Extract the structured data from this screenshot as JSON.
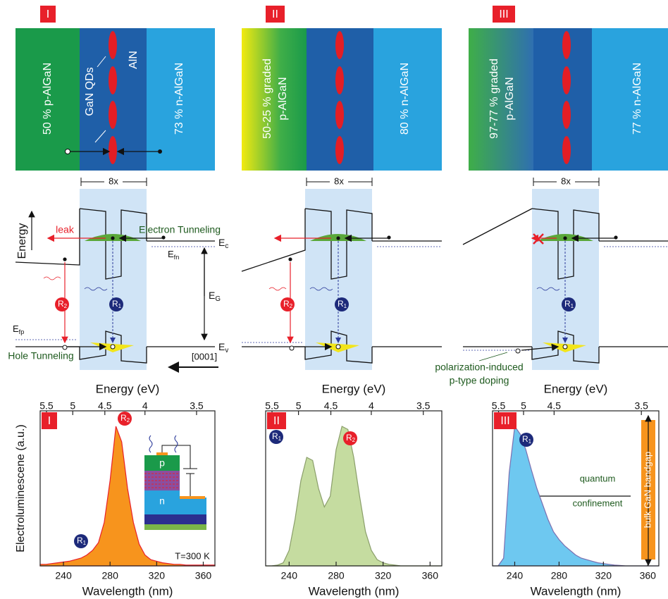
{
  "structures": [
    {
      "label": "I",
      "left": [
        "50 % p-AlGaN"
      ],
      "qd": "GaN QDs",
      "barrier": "AlN",
      "right": "73 % n-AlGaN",
      "period": "8x"
    },
    {
      "label": "II",
      "left": [
        "50-25 % graded",
        "p-AlGaN"
      ],
      "right": "80 % n-AlGaN",
      "period": "8x"
    },
    {
      "label": "III",
      "left": [
        "97-77 % graded",
        "p-AlGaN"
      ],
      "right": "77 % n-AlGaN",
      "period": "8x"
    }
  ],
  "band_diagram": {
    "energy": "Energy",
    "leak": "leak",
    "electron_tunneling": "Electron Tunneling",
    "hole_tunneling": "Hole Tunneling",
    "Ec": [
      "E",
      "c"
    ],
    "Efn": [
      "E",
      "fn"
    ],
    "EG": [
      "E",
      "G"
    ],
    "Efp": [
      "E",
      "fp"
    ],
    "Ev": [
      "E",
      "v"
    ],
    "direction": "[0001]",
    "R1": [
      "R",
      "1"
    ],
    "R2": [
      "R",
      "2"
    ],
    "polarization": [
      "polarization-induced",
      "p-type doping"
    ]
  },
  "chart_data": [
    {
      "type": "area",
      "label": "I",
      "color": "#f7941d",
      "stroke": "#e8202a",
      "x_label": "Wavelength (nm)",
      "top_label": "Energy (eV)",
      "y_label": "Electroluminescene (a.u.)",
      "x": [
        220,
        225,
        230,
        235,
        240,
        245,
        250,
        255,
        260,
        265,
        270,
        275,
        280,
        285,
        290,
        295,
        300,
        305,
        310,
        315,
        320,
        325,
        330,
        335,
        340,
        345,
        350,
        355,
        360,
        365,
        370
      ],
      "values": [
        1,
        1,
        1.5,
        2,
        2.5,
        3,
        4,
        5,
        7,
        10,
        15,
        28,
        55,
        90,
        80,
        50,
        28,
        14,
        7,
        4,
        3,
        2,
        1.5,
        1,
        1,
        0.5,
        0.5,
        0.5,
        0.5,
        0.5,
        0.5
      ],
      "xlim": [
        220,
        370
      ],
      "ylim": [
        0,
        100
      ],
      "xticks": [
        240,
        280,
        320,
        360
      ],
      "energy_ticks": [
        5.5,
        5,
        4.5,
        4,
        3.5
      ],
      "temperature": "T=300 K",
      "inset": [
        "p",
        "n"
      ]
    },
    {
      "type": "area",
      "label": "II",
      "color": "#c5dca0",
      "stroke": "#8a9e6a",
      "x_label": "Wavelength (nm)",
      "top_label": "Energy (eV)",
      "x": [
        220,
        225,
        230,
        235,
        240,
        245,
        250,
        255,
        260,
        265,
        270,
        275,
        280,
        285,
        290,
        295,
        300,
        305,
        310,
        315,
        320,
        325,
        330,
        335,
        340,
        345,
        350,
        355,
        360,
        365,
        370
      ],
      "values": [
        0,
        0,
        0.5,
        2,
        10,
        30,
        55,
        70,
        68,
        50,
        38,
        45,
        75,
        90,
        88,
        70,
        45,
        22,
        10,
        4,
        2,
        1,
        0.5,
        0,
        0,
        0,
        0,
        0,
        0,
        0,
        0
      ],
      "xlim": [
        220,
        370
      ],
      "ylim": [
        0,
        100
      ],
      "xticks": [
        240,
        280,
        320,
        360
      ],
      "energy_ticks": [
        5.5,
        5,
        4.5,
        4,
        3.5
      ]
    },
    {
      "type": "area",
      "label": "III",
      "color": "#6ec8f0",
      "stroke": "#7b6fb0",
      "x_label": "Wavelength (nm)",
      "top_label": "Energy (eV)",
      "x": [
        220,
        225,
        230,
        235,
        240,
        245,
        250,
        255,
        260,
        265,
        270,
        275,
        280,
        285,
        290,
        295,
        300,
        305,
        310,
        315,
        320,
        325,
        330,
        335,
        340,
        345,
        350,
        355,
        360,
        365,
        370
      ],
      "values": [
        0,
        0,
        5,
        60,
        90,
        85,
        75,
        62,
        50,
        40,
        30,
        22,
        17,
        13,
        10,
        7,
        5,
        4,
        3,
        2,
        1.5,
        1,
        0.5,
        0.3,
        0,
        0,
        0,
        0,
        0,
        0,
        0
      ],
      "xlim": [
        220,
        370
      ],
      "ylim": [
        0,
        100
      ],
      "xticks": [
        240,
        280,
        320,
        360
      ],
      "energy_ticks": [
        5.5,
        5,
        4.5,
        3.5
      ],
      "annotation": [
        "quantum",
        "confinement"
      ],
      "bandgap": "bulk GaN bandgap"
    }
  ]
}
